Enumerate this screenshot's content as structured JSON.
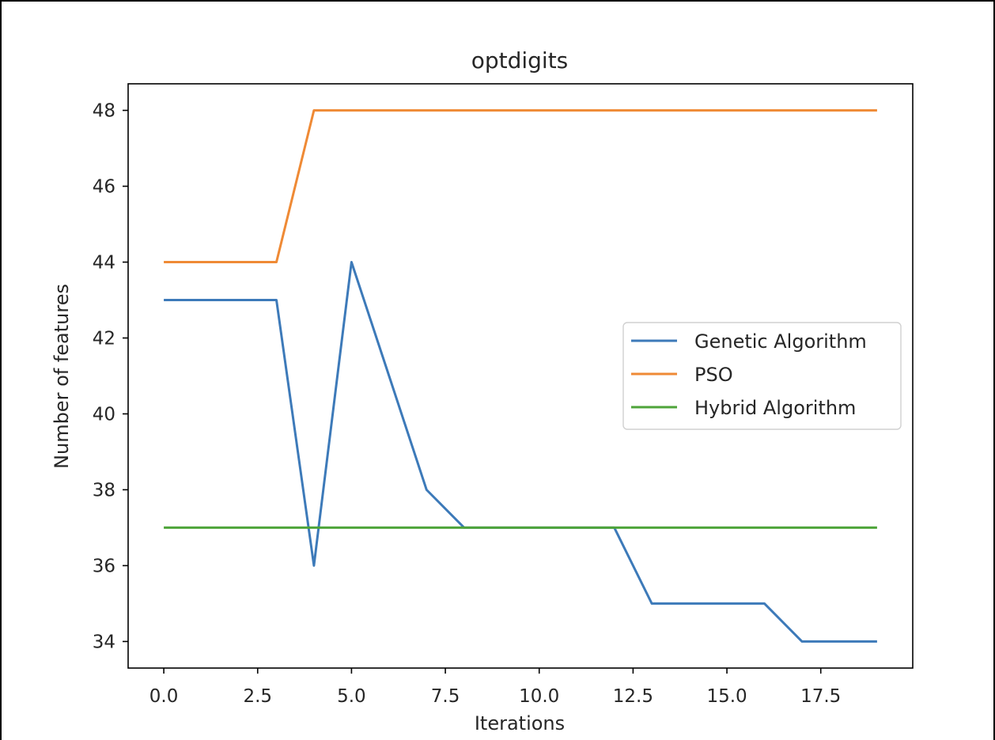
{
  "chart_data": {
    "type": "line",
    "title": "optdigits",
    "xlabel": "Iterations",
    "ylabel": "Number of features",
    "x": [
      0,
      1,
      2,
      3,
      4,
      5,
      6,
      7,
      8,
      9,
      10,
      11,
      12,
      13,
      14,
      15,
      16,
      17,
      18,
      19
    ],
    "xlim": [
      -0.95,
      19.95
    ],
    "ylim": [
      33.3,
      48.7
    ],
    "xticks": [
      0.0,
      2.5,
      5.0,
      7.5,
      10.0,
      12.5,
      15.0,
      17.5
    ],
    "xtick_labels": [
      "0.0",
      "2.5",
      "5.0",
      "7.5",
      "10.0",
      "12.5",
      "15.0",
      "17.5"
    ],
    "yticks": [
      34,
      36,
      38,
      40,
      42,
      44,
      46,
      48
    ],
    "ytick_labels": [
      "34",
      "36",
      "38",
      "40",
      "42",
      "44",
      "46",
      "48"
    ],
    "grid": false,
    "legend_position": "center-right",
    "series": [
      {
        "name": "Genetic Algorithm",
        "color": "#3d7ab9",
        "values": [
          43,
          43,
          43,
          43,
          36,
          44,
          41,
          38,
          37,
          37,
          37,
          37,
          37,
          35,
          35,
          35,
          35,
          34,
          34,
          34
        ]
      },
      {
        "name": "PSO",
        "color": "#ef8a35",
        "values": [
          44,
          44,
          44,
          44,
          48,
          48,
          48,
          48,
          48,
          48,
          48,
          48,
          48,
          48,
          48,
          48,
          48,
          48,
          48,
          48
        ]
      },
      {
        "name": "Hybrid Algorithm",
        "color": "#4ea43a",
        "values": [
          37,
          37,
          37,
          37,
          37,
          37,
          37,
          37,
          37,
          37,
          37,
          37,
          37,
          37,
          37,
          37,
          37,
          37,
          37,
          37
        ]
      }
    ]
  }
}
